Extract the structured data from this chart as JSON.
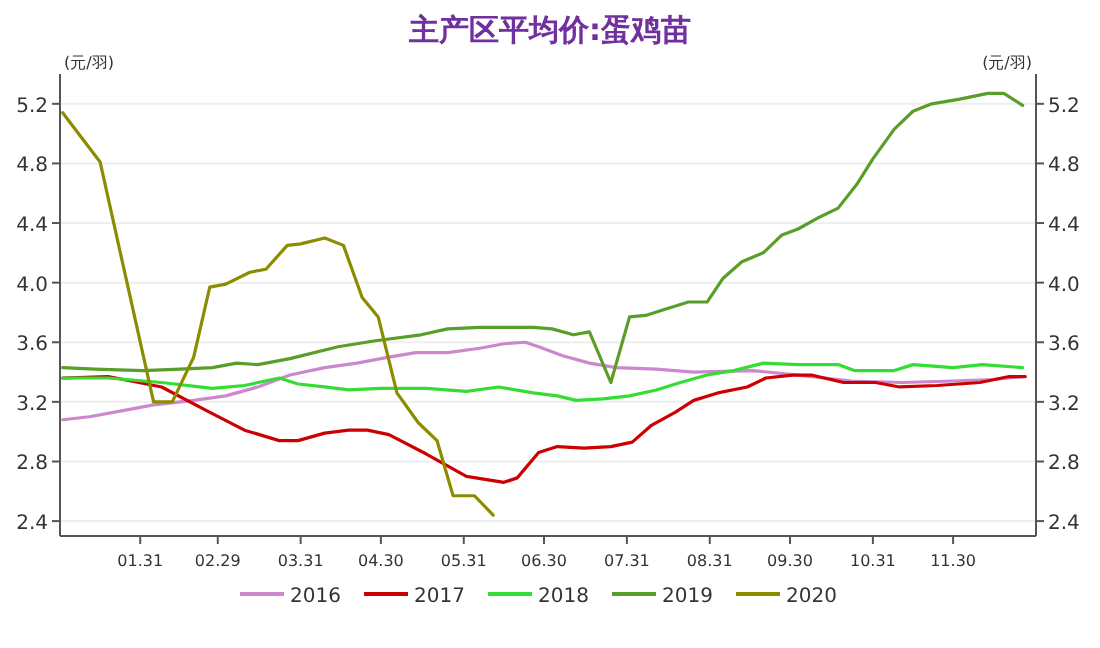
{
  "chart_data": {
    "type": "line",
    "title": "主产区平均价:蛋鸡苗",
    "ylabel": "(元/羽)",
    "y2label": "(元/羽)",
    "xlim": [
      "--01-01",
      "--12-31"
    ],
    "xticks": [
      {
        "value": "--01-31",
        "label": "01.31"
      },
      {
        "value": "--02-29",
        "label": "02.29"
      },
      {
        "value": "--03-31",
        "label": "03.31"
      },
      {
        "value": "--04-30",
        "label": "04.30"
      },
      {
        "value": "--05-31",
        "label": "05.31"
      },
      {
        "value": "--06-30",
        "label": "06.30"
      },
      {
        "value": "--07-31",
        "label": "07.31"
      },
      {
        "value": "--08-31",
        "label": "08.31"
      },
      {
        "value": "--09-30",
        "label": "09.30"
      },
      {
        "value": "--10-31",
        "label": "10.31"
      },
      {
        "value": "--11-30",
        "label": "11.30"
      }
    ],
    "ylim": [
      2.3,
      5.4
    ],
    "yticks": [
      {
        "value": 2.4,
        "label": "2.4"
      },
      {
        "value": 2.8,
        "label": "2.8"
      },
      {
        "value": 3.2,
        "label": "3.2"
      },
      {
        "value": 3.6,
        "label": "3.6"
      },
      {
        "value": 4.0,
        "label": "4.0"
      },
      {
        "value": 4.4,
        "label": "4.4"
      },
      {
        "value": 4.8,
        "label": "4.8"
      },
      {
        "value": 5.2,
        "label": "5.2"
      }
    ],
    "y2lim": [
      2.3,
      5.4
    ],
    "y2ticks": [
      {
        "value": 2.4,
        "label": "2.4"
      },
      {
        "value": 2.8,
        "label": "2.8"
      },
      {
        "value": 3.2,
        "label": "3.2"
      },
      {
        "value": 3.6,
        "label": "3.6"
      },
      {
        "value": 4.0,
        "label": "4.0"
      },
      {
        "value": 4.4,
        "label": "4.4"
      },
      {
        "value": 4.8,
        "label": "4.8"
      },
      {
        "value": 5.2,
        "label": "5.2"
      }
    ],
    "grid": "y",
    "legend": "bottom",
    "marker": "none",
    "line_style": "solid",
    "series": [
      {
        "name": "2016",
        "color": "#cc88cc",
        "x": [
          "--01-02",
          "--01-12",
          "--01-24",
          "--02-05",
          "--02-20",
          "--03-03",
          "--03-15",
          "--03-27",
          "--04-09",
          "--04-21",
          "--05-03",
          "--05-13",
          "--05-25",
          "--06-06",
          "--06-15",
          "--06-23",
          "--06-28",
          "--07-07",
          "--07-17",
          "--07-27",
          "--08-11",
          "--08-25",
          "--09-16",
          "--10-03",
          "--10-23",
          "--11-11",
          "--11-30",
          "--12-15",
          "--12-26"
        ],
        "values": [
          3.08,
          3.1,
          3.14,
          3.18,
          3.21,
          3.24,
          3.3,
          3.38,
          3.43,
          3.46,
          3.5,
          3.53,
          3.53,
          3.56,
          3.59,
          3.6,
          3.57,
          3.51,
          3.46,
          3.43,
          3.42,
          3.4,
          3.41,
          3.38,
          3.34,
          3.33,
          3.34,
          3.35,
          3.37
        ]
      },
      {
        "name": "2017",
        "color": "#cc0000",
        "x": [
          "--01-02",
          "--01-19",
          "--02-08",
          "--02-25",
          "--03-10",
          "--03-23",
          "--03-30",
          "--04-09",
          "--04-18",
          "--04-25",
          "--05-03",
          "--05-17",
          "--06-01",
          "--06-15",
          "--06-20",
          "--06-28",
          "--07-05",
          "--07-15",
          "--07-25",
          "--08-02",
          "--08-09",
          "--08-18",
          "--08-25",
          "--09-03",
          "--09-14",
          "--09-21",
          "--10-01",
          "--10-08",
          "--10-20",
          "--11-01",
          "--11-10",
          "--11-24",
          "--12-10",
          "--12-21",
          "--12-27"
        ],
        "values": [
          3.36,
          3.37,
          3.3,
          3.14,
          3.01,
          2.94,
          2.94,
          2.99,
          3.01,
          3.01,
          2.98,
          2.85,
          2.7,
          2.66,
          2.69,
          2.86,
          2.9,
          2.89,
          2.9,
          2.93,
          3.04,
          3.13,
          3.21,
          3.26,
          3.3,
          3.36,
          3.38,
          3.38,
          3.33,
          3.33,
          3.3,
          3.31,
          3.33,
          3.37,
          3.37
        ]
      },
      {
        "name": "2018",
        "color": "#33dd33",
        "x": [
          "--01-02",
          "--01-19",
          "--02-08",
          "--02-27",
          "--03-10",
          "--03-23",
          "--03-30",
          "--04-09",
          "--04-18",
          "--04-30",
          "--05-17",
          "--06-01",
          "--06-13",
          "--06-26",
          "--07-05",
          "--07-12",
          "--07-22",
          "--08-01",
          "--08-11",
          "--08-20",
          "--08-30",
          "--09-09",
          "--09-20",
          "--10-03",
          "--10-18",
          "--10-24",
          "--11-08",
          "--11-15",
          "--11-30",
          "--12-11",
          "--12-26"
        ],
        "values": [
          3.36,
          3.36,
          3.33,
          3.29,
          3.31,
          3.36,
          3.32,
          3.3,
          3.28,
          3.29,
          3.29,
          3.27,
          3.3,
          3.26,
          3.24,
          3.21,
          3.22,
          3.24,
          3.28,
          3.33,
          3.38,
          3.41,
          3.46,
          3.45,
          3.45,
          3.41,
          3.41,
          3.45,
          3.43,
          3.45,
          3.43
        ]
      },
      {
        "name": "2019",
        "color": "#5a9e2a",
        "x": [
          "--01-02",
          "--01-14",
          "--02-01",
          "--02-15",
          "--02-27",
          "--03-07",
          "--03-15",
          "--03-27",
          "--04-14",
          "--04-28",
          "--05-15",
          "--05-25",
          "--06-06",
          "--06-26",
          "--07-03",
          "--07-11",
          "--07-17",
          "--07-25",
          "--08-01",
          "--08-07",
          "--08-14",
          "--08-23",
          "--08-30",
          "--09-05",
          "--09-12",
          "--09-20",
          "--09-27",
          "--10-03",
          "--10-10",
          "--10-18",
          "--10-25",
          "--10-31",
          "--11-08",
          "--11-15",
          "--11-22",
          "--12-02",
          "--12-13",
          "--12-19",
          "--12-26"
        ],
        "values": [
          3.43,
          3.42,
          3.41,
          3.42,
          3.43,
          3.46,
          3.45,
          3.49,
          3.57,
          3.61,
          3.65,
          3.69,
          3.7,
          3.7,
          3.69,
          3.65,
          3.67,
          3.33,
          3.77,
          3.78,
          3.82,
          3.87,
          3.87,
          4.03,
          4.14,
          4.2,
          4.32,
          4.36,
          4.43,
          4.5,
          4.66,
          4.83,
          5.03,
          5.15,
          5.2,
          5.23,
          5.27,
          5.27,
          5.19
        ]
      },
      {
        "name": "2020",
        "color": "#8c8c00",
        "x": [
          "--01-02",
          "--01-16",
          "--02-05",
          "--02-12",
          "--02-20",
          "--02-26",
          "--03-03",
          "--03-12",
          "--03-18",
          "--03-26",
          "--03-31",
          "--04-09",
          "--04-16",
          "--04-23",
          "--04-29",
          "--05-06",
          "--05-14",
          "--05-21",
          "--05-27",
          "--06-04",
          "--06-11"
        ],
        "values": [
          5.14,
          4.81,
          3.2,
          3.2,
          3.5,
          3.97,
          3.99,
          4.07,
          4.09,
          4.25,
          4.26,
          4.3,
          4.25,
          3.9,
          3.77,
          3.26,
          3.06,
          2.94,
          2.57,
          2.57,
          2.44
        ]
      }
    ]
  }
}
